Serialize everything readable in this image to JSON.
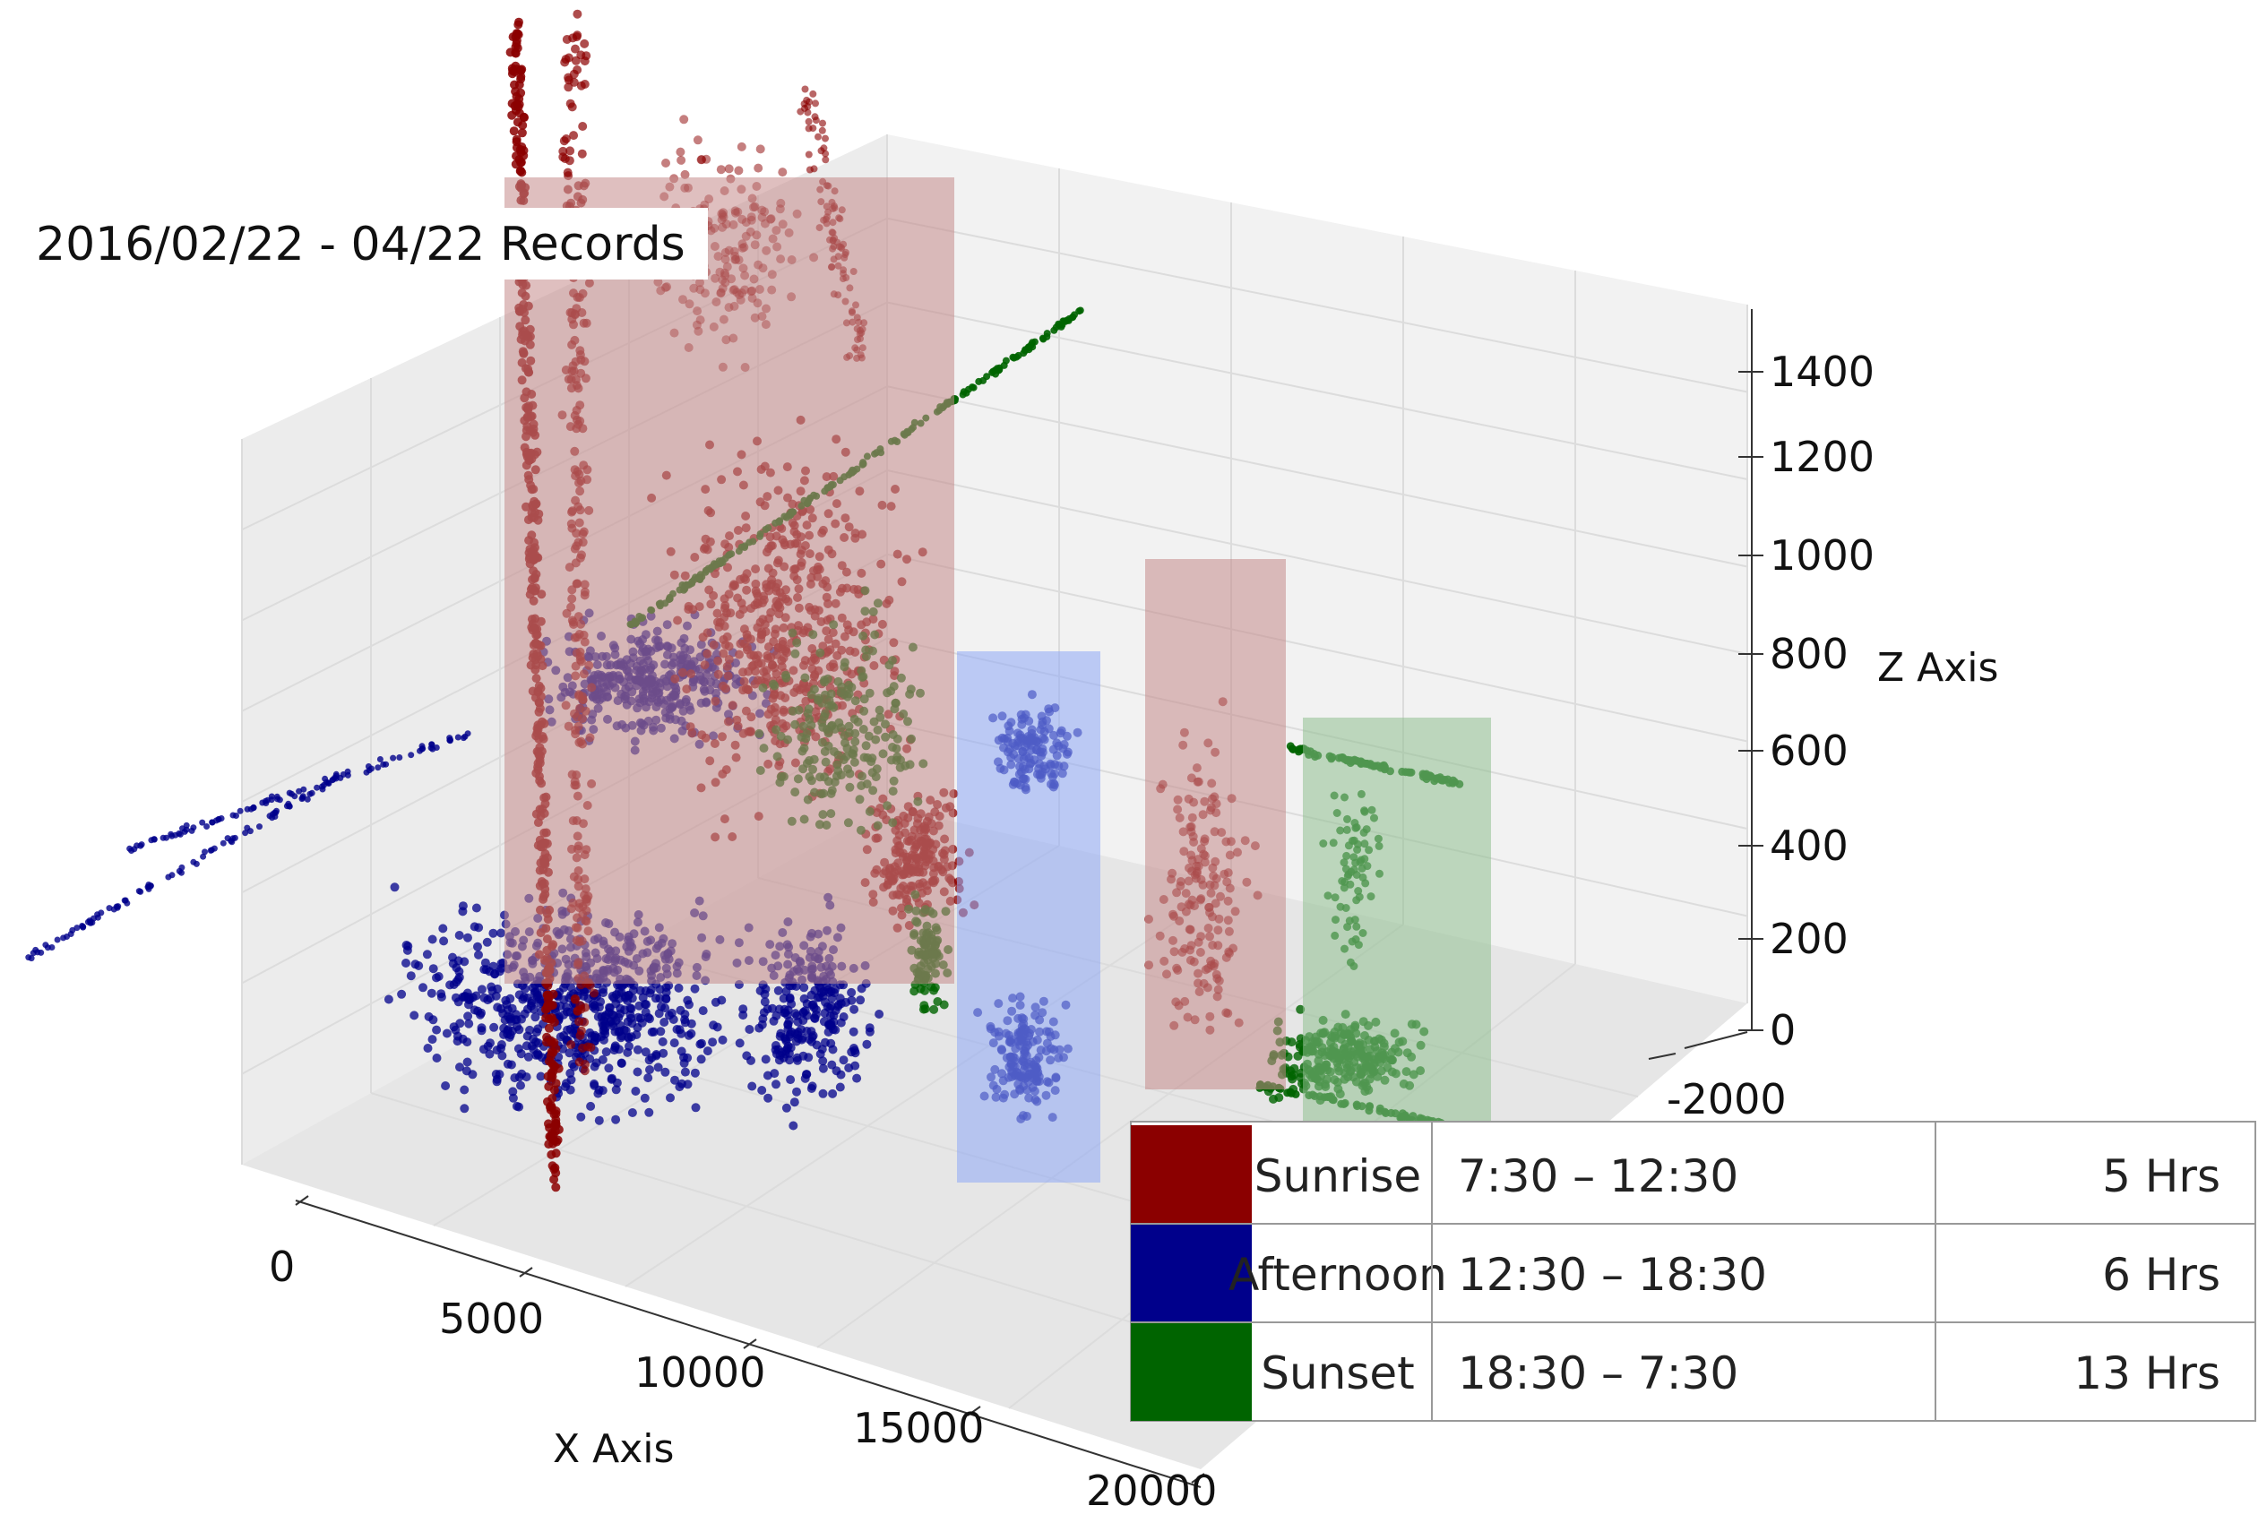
{
  "chart_data": {
    "type": "scatter",
    "projection": "3d",
    "title": "2016/02/22 - 04/22 Records",
    "xlabel": "X Axis",
    "ylabel": "",
    "zlabel": "Z Axis",
    "x_ticks": [
      "0",
      "5000",
      "10000",
      "15000",
      "20000"
    ],
    "y_ticks": [
      "-2000"
    ],
    "z_ticks": [
      "0",
      "200",
      "400",
      "600",
      "800",
      "1000",
      "1200",
      "1400"
    ],
    "xlim": [
      0,
      20000
    ],
    "zlim": [
      0,
      1400
    ],
    "grid": true,
    "legend_position": "bottom-right",
    "legend_rows": [
      {
        "name": "Sunrise",
        "time": "7:30 – 12:30",
        "duration": "5 Hrs",
        "color": "#8b0000"
      },
      {
        "name": "Afternoon",
        "time": "12:30 – 18:30",
        "duration": "6 Hrs",
        "color": "#00008b"
      },
      {
        "name": "Sunset",
        "time": "18:30 – 7:30",
        "duration": "13 Hrs",
        "color": "#006400"
      }
    ],
    "series_colors": {
      "Sunrise": "#8b0000",
      "Afternoon": "#00008b",
      "Sunset": "#006400"
    },
    "highlight_boxes": [
      {
        "series": "Sunrise",
        "color": "#c48a8a"
      },
      {
        "series": "Afternoon",
        "color": "#8ea8f5"
      },
      {
        "series": "Sunrise",
        "color": "#c48a8a"
      },
      {
        "series": "Sunset",
        "color": "#8fc08f"
      }
    ]
  }
}
